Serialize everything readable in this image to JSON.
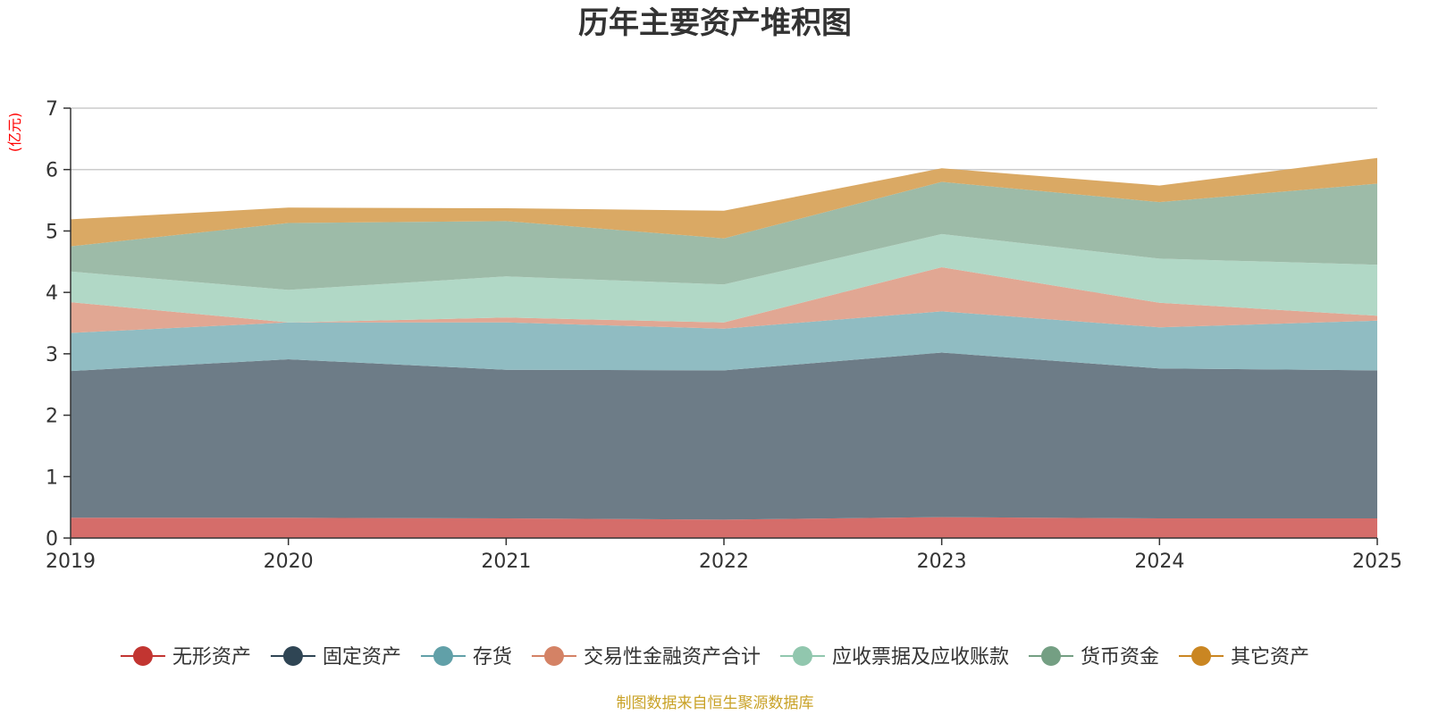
{
  "chart_data": {
    "type": "area",
    "stacked": true,
    "title": "历年主要资产堆积图",
    "unit_label": "(亿元)",
    "x": [
      "2019",
      "2020",
      "2021",
      "2022",
      "2023",
      "2024",
      "2025"
    ],
    "ylim": [
      0,
      7
    ],
    "yticks": [
      "0",
      "1",
      "2",
      "3",
      "4",
      "5",
      "6",
      "7"
    ],
    "grid": true,
    "legend_position": "bottom",
    "series": [
      {
        "name": "无形资产",
        "color": "#c23531",
        "fill": "#d56d6a",
        "values": [
          0.33,
          0.33,
          0.32,
          0.3,
          0.34,
          0.32,
          0.32
        ]
      },
      {
        "name": "固定资产",
        "color": "#2f4554",
        "fill": "#6d7c87",
        "values": [
          2.39,
          2.58,
          2.42,
          2.43,
          2.68,
          2.44,
          2.41
        ]
      },
      {
        "name": "存货",
        "color": "#61a0a8",
        "fill": "#90bcc2",
        "values": [
          0.62,
          0.6,
          0.77,
          0.68,
          0.67,
          0.67,
          0.81
        ]
      },
      {
        "name": "交易性金融资产合计",
        "color": "#d48265",
        "fill": "#e1a793",
        "values": [
          0.5,
          0.0,
          0.08,
          0.1,
          0.72,
          0.4,
          0.08
        ]
      },
      {
        "name": "应收票据及应收账款",
        "color": "#91c7ae",
        "fill": "#b1d8c6",
        "values": [
          0.5,
          0.53,
          0.67,
          0.62,
          0.54,
          0.72,
          0.83
        ]
      },
      {
        "name": "货币资金",
        "color": "#749f83",
        "fill": "#9dbba8",
        "values": [
          0.41,
          1.09,
          0.9,
          0.75,
          0.85,
          0.92,
          1.32
        ]
      },
      {
        "name": "其它资产",
        "color": "#ca8622",
        "fill": "#daa964",
        "values": [
          0.44,
          0.25,
          0.21,
          0.45,
          0.22,
          0.27,
          0.42
        ]
      }
    ]
  },
  "source_text": "制图数据来自恒生聚源数据库",
  "colors": {
    "unit": "#ff0000",
    "source": "#c9a227",
    "grid": "#cccccc",
    "axis": "#333333"
  }
}
